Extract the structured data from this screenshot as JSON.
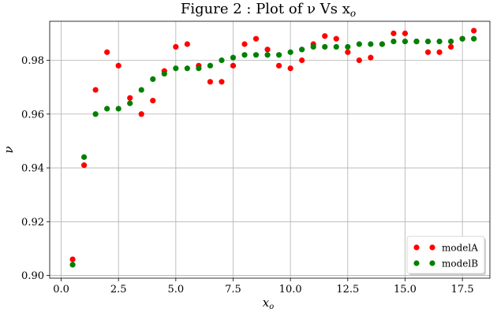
{
  "chart_data": {
    "type": "scatter",
    "title": "Figure 2 : Plot of ν Vs x",
    "title_sub": "o",
    "xlabel": "x",
    "xlabel_sub": "o",
    "ylabel": "ν",
    "xlim": [
      -0.5,
      18.7
    ],
    "ylim": [
      0.899,
      0.9945
    ],
    "x_ticks": [
      0.0,
      2.5,
      5.0,
      7.5,
      10.0,
      12.5,
      15.0,
      17.5
    ],
    "x_tick_labels": [
      "0.0",
      "2.5",
      "5.0",
      "7.5",
      "10.0",
      "12.5",
      "15.0",
      "17.5"
    ],
    "y_ticks": [
      0.9,
      0.92,
      0.94,
      0.96,
      0.98
    ],
    "y_tick_labels": [
      "0.90",
      "0.92",
      "0.94",
      "0.96",
      "0.98"
    ],
    "grid": true,
    "legend_position": "lower-right",
    "x": [
      0.5,
      1.0,
      1.5,
      2.0,
      2.5,
      3.0,
      3.5,
      4.0,
      4.5,
      5.0,
      5.5,
      6.0,
      6.5,
      7.0,
      7.5,
      8.0,
      8.5,
      9.0,
      9.5,
      10.0,
      10.5,
      11.0,
      11.5,
      12.0,
      12.5,
      13.0,
      13.5,
      14.0,
      14.5,
      15.0,
      15.5,
      16.0,
      16.5,
      17.0,
      17.5,
      18.0
    ],
    "series": [
      {
        "name": "modelA",
        "color": "#ff0000",
        "values": [
          0.906,
          0.941,
          0.969,
          0.983,
          0.978,
          0.966,
          0.96,
          0.965,
          0.976,
          0.985,
          0.986,
          0.978,
          0.972,
          0.972,
          0.978,
          0.986,
          0.988,
          0.984,
          0.978,
          0.977,
          0.98,
          0.986,
          0.989,
          0.988,
          0.983,
          0.98,
          0.981,
          0.986,
          0.99,
          0.99,
          0.987,
          0.983,
          0.983,
          0.985,
          0.988,
          0.991
        ]
      },
      {
        "name": "modelB",
        "color": "#008000",
        "values": [
          0.904,
          0.944,
          0.96,
          0.962,
          0.962,
          0.964,
          0.969,
          0.973,
          0.975,
          0.977,
          0.977,
          0.977,
          0.978,
          0.98,
          0.981,
          0.982,
          0.982,
          0.982,
          0.982,
          0.983,
          0.984,
          0.985,
          0.985,
          0.985,
          0.985,
          0.986,
          0.986,
          0.986,
          0.987,
          0.987,
          0.987,
          0.987,
          0.987,
          0.987,
          0.988,
          0.988
        ]
      }
    ]
  }
}
